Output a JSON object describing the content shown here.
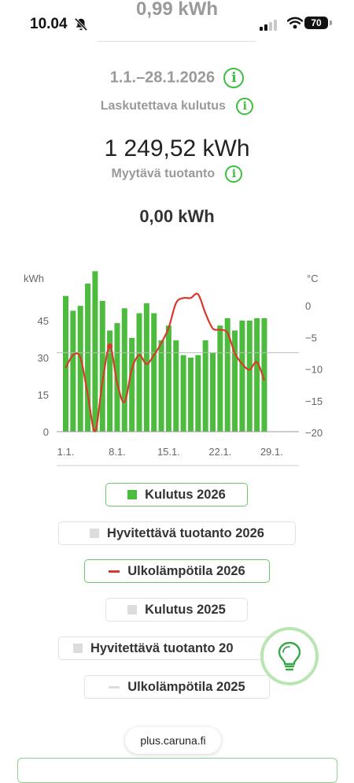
{
  "status_bar": {
    "time": "10.04",
    "battery": "70",
    "bell_icon": "bell-muted-icon",
    "signal_icon": "signal-icon",
    "wifi_icon": "wifi-icon"
  },
  "summary": {
    "previous_value": "0,99 kWh",
    "period": "1.1.–28.1.2026",
    "billable_label": "Laskutettava kulutus",
    "billable_value": "1 249,52 kWh",
    "sellable_label": "Myytävä tuotanto",
    "sellable_value": "0,00 kWh",
    "info_icon": "info-icon"
  },
  "chart_data": {
    "type": "bar",
    "y_unit_left": "kWh",
    "y_unit_right": "°C",
    "x_ticks": [
      "1.1.",
      "8.1.",
      "15.1.",
      "22.1.",
      "29.1."
    ],
    "left_ticks": [
      "0",
      "15",
      "30",
      "45"
    ],
    "right_ticks": [
      "0",
      "−5",
      "−10",
      "−15",
      "−20"
    ],
    "ylim_left": [
      0,
      60
    ],
    "ylim_right": [
      -20,
      0
    ],
    "reference_line": 32,
    "series": [
      {
        "name": "Kulutus 2026",
        "color": "#4cbb3e",
        "type": "bar",
        "values": [
          55,
          49,
          51,
          60,
          65,
          53,
          41,
          44,
          50,
          38,
          48,
          52,
          48,
          37,
          43,
          37,
          31,
          30,
          31,
          37,
          32,
          43,
          46,
          41,
          45,
          45,
          46,
          46
        ]
      },
      {
        "name": "Ulkolämpötila 2026",
        "color": "#d9392a",
        "type": "line",
        "values": [
          -9.8,
          -7.8,
          -8.2,
          -14,
          -19.8,
          -12,
          -6.4,
          -12.2,
          -15.2,
          -10,
          -7.8,
          -9.2,
          -7.8,
          -5.9,
          -3.5,
          0.4,
          1.2,
          1.2,
          1.8,
          -1.2,
          -3.6,
          -3.8,
          -4.3,
          -7.5,
          -9.2,
          -10.1,
          -8.9,
          -11.8
        ]
      }
    ]
  },
  "legend": [
    {
      "label": "Kulutus 2026",
      "active": true,
      "swatch": "box",
      "color": "#4cbb3e"
    },
    {
      "label": "Hyvitettävä tuotanto 2026",
      "active": false,
      "swatch": "box",
      "color": "#dcdcdc"
    },
    {
      "label": "Ulkolämpötila 2026",
      "active": true,
      "swatch": "line",
      "color": "#d9392a"
    },
    {
      "label": "Kulutus 2025",
      "active": false,
      "swatch": "box",
      "color": "#dcdcdc"
    },
    {
      "label": "Hyvitettävä tuotanto 20",
      "active": false,
      "swatch": "box",
      "color": "#dcdcdc"
    },
    {
      "label": "Ulkolämpötila 2025",
      "active": false,
      "swatch": "line",
      "color": "#dcdcdc"
    }
  ],
  "fab": {
    "icon": "lightbulb-icon"
  },
  "browser": {
    "url": "plus.caruna.fi"
  }
}
